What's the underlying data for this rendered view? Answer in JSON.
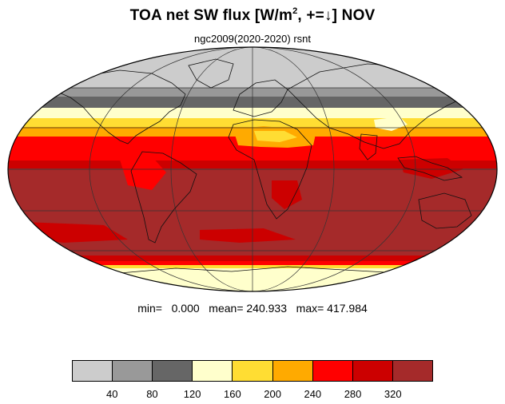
{
  "header": {
    "title_pre": "TOA net SW flux [W/m",
    "title_sup": "2",
    "title_post": ", +=↓]  NOV",
    "subtitle": "ngc2009(2020-2020)   rsnt"
  },
  "stats": {
    "text": "min=   0.000   mean= 240.933   max= 417.984"
  },
  "colorbar": {
    "colors": [
      "#cccccc",
      "#999999",
      "#666666",
      "#ffffcc",
      "#ffdd33",
      "#ffaa00",
      "#ff0000",
      "#cc0000",
      "#a52a2a"
    ],
    "labels": [
      "40",
      "80",
      "120",
      "160",
      "200",
      "240",
      "280",
      "320"
    ]
  },
  "map": {
    "projection": "mollweide",
    "ocean_color": "#a52a2a"
  }
}
